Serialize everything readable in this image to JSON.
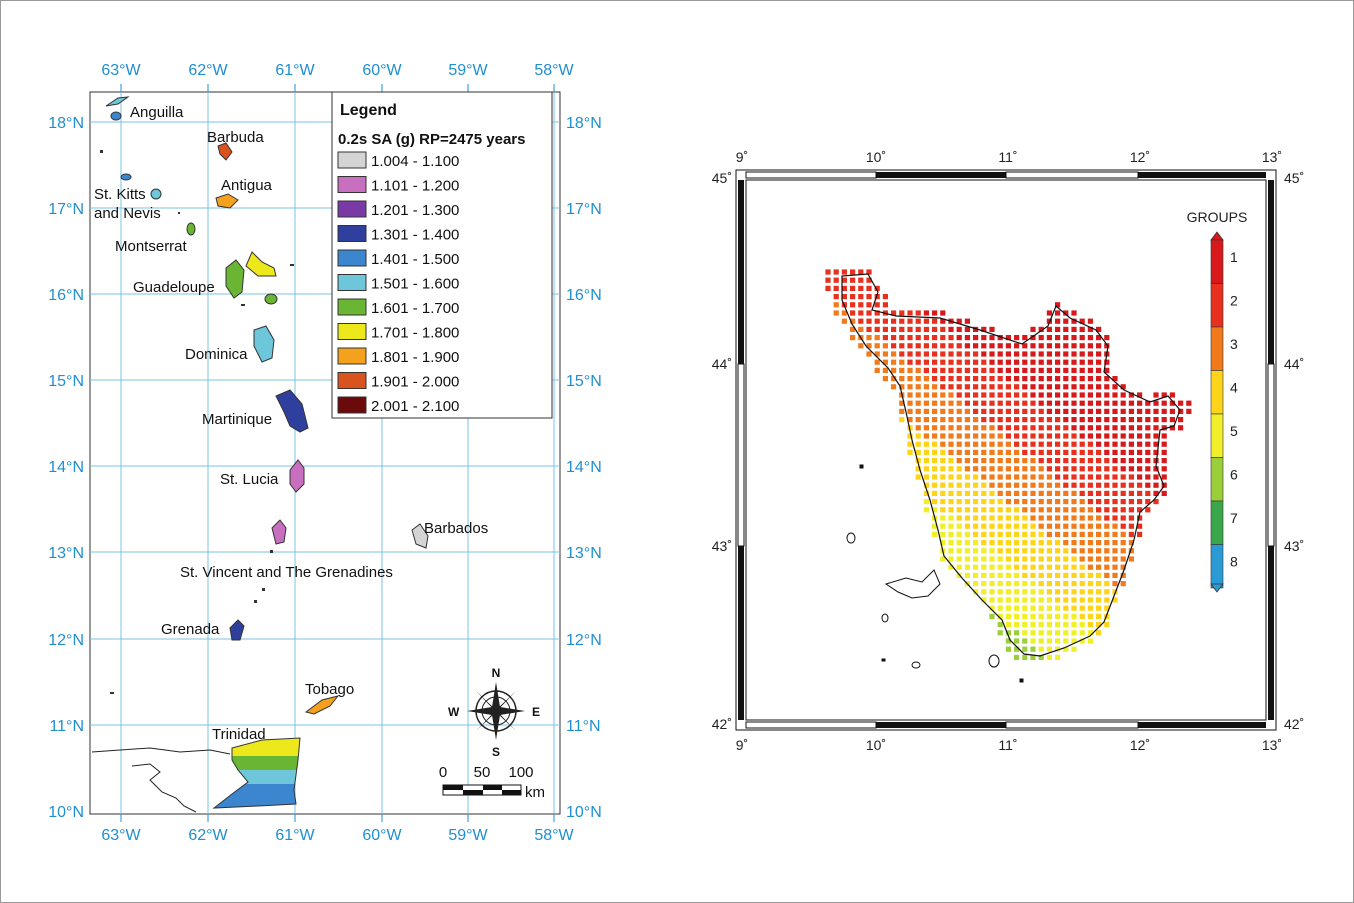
{
  "left_map": {
    "lon_labels": [
      "63°W",
      "62°W",
      "61°W",
      "60°W",
      "59°W",
      "58°W"
    ],
    "lat_labels": [
      "18°N",
      "17°N",
      "16°N",
      "15°N",
      "14°N",
      "13°N",
      "12°N",
      "11°N",
      "10°N"
    ],
    "places": {
      "anguilla": "Anguilla",
      "barbuda": "Barbuda",
      "antigua": "Antigua",
      "st_kitts_1": "St. Kitts",
      "st_kitts_2": "and Nevis",
      "montserrat": "Montserrat",
      "guadeloupe": "Guadeloupe",
      "dominica": "Dominica",
      "martinique": "Martinique",
      "st_lucia": "St. Lucia",
      "barbados": "Barbados",
      "st_vincent": "St. Vincent and The Grenadines",
      "grenada": "Grenada",
      "tobago": "Tobago",
      "trinidad": "Trinidad"
    },
    "legend": {
      "title": "Legend",
      "subtitle": "0.2s SA (g) RP=2475 years",
      "classes": [
        {
          "label": "1.004 - 1.100",
          "color": "#d4d4d4"
        },
        {
          "label": "1.101 - 1.200",
          "color": "#c86fc0"
        },
        {
          "label": "1.201 - 1.300",
          "color": "#7a3aa6"
        },
        {
          "label": "1.301 - 1.400",
          "color": "#2e3f9e"
        },
        {
          "label": "1.401 - 1.500",
          "color": "#3b86cf"
        },
        {
          "label": "1.501 - 1.600",
          "color": "#6dc6d9"
        },
        {
          "label": "1.601 - 1.700",
          "color": "#6ab534"
        },
        {
          "label": "1.701 - 1.800",
          "color": "#ece81c"
        },
        {
          "label": "1.801 - 1.900",
          "color": "#f4a11e"
        },
        {
          "label": "1.901 - 2.000",
          "color": "#d9531e"
        },
        {
          "label": "2.001 - 2.100",
          "color": "#6b0a0a"
        }
      ]
    },
    "compass": {
      "n": "N",
      "s": "S",
      "e": "E",
      "w": "W"
    },
    "scale": {
      "labels": [
        "0",
        "50",
        "100"
      ],
      "unit": "km"
    }
  },
  "right_map": {
    "lon_labels": [
      "9˚",
      "10˚",
      "11˚",
      "12˚",
      "13˚"
    ],
    "lat_labels_left": [
      "45˚",
      "44˚",
      "43˚",
      "42˚"
    ],
    "lat_labels_right": [
      "45˚",
      "44˚",
      "43˚",
      "42˚"
    ],
    "colorbar": {
      "title": "GROUPS",
      "labels": [
        "1",
        "2",
        "3",
        "4",
        "5",
        "6",
        "7",
        "8"
      ],
      "colors": [
        "#d7191c",
        "#e8301e",
        "#f07a1c",
        "#fdd41a",
        "#f1ef2a",
        "#9bcf3a",
        "#3aa84a",
        "#2b9bd6"
      ]
    }
  }
}
